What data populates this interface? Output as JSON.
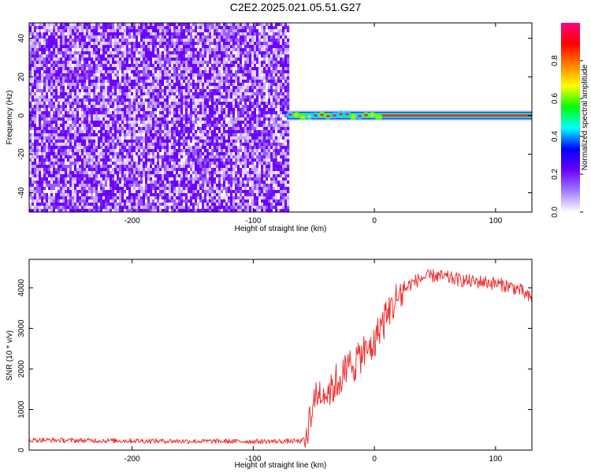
{
  "title": "C2E2.2025.021.05.51.G27",
  "chart_data": [
    {
      "type": "heatmap",
      "xlabel": "Height of straight line (km)",
      "ylabel": "Frequency (Hz)",
      "xlim": [
        -285,
        130
      ],
      "ylim": [
        -50,
        48
      ],
      "x_ticks": [
        -200,
        -100,
        0,
        100
      ],
      "y_ticks": [
        -40,
        -20,
        0,
        20,
        40
      ],
      "regions": [
        {
          "description": "noise",
          "x_range": [
            -285,
            -72
          ],
          "y_range": [
            -50,
            48
          ],
          "normalized_amplitude": 0.1
        },
        {
          "description": "signal band",
          "x_range": [
            -72,
            130
          ],
          "y_center": 0,
          "y_halfwidth": 2,
          "normalized_amplitude": 0.95
        }
      ],
      "colorbar": {
        "label": "Normalized spectral amplitude",
        "range": [
          0,
          1
        ],
        "ticks": [
          0.0,
          0.2,
          0.4,
          0.6,
          0.8
        ],
        "colors": [
          "#ffffff",
          "#a07cff",
          "#6a00ff",
          "#0000ff",
          "#00ffff",
          "#00ff00",
          "#ffff00",
          "#ff8000",
          "#ff0000",
          "#ff0080"
        ]
      }
    },
    {
      "type": "line",
      "xlabel": "Height of straight line (km)",
      "ylabel": "SNR (10 * v/v)",
      "xlim": [
        -285,
        130
      ],
      "ylim": [
        0,
        4700
      ],
      "x_ticks": [
        -200,
        -100,
        0,
        100
      ],
      "y_ticks": [
        0,
        1000,
        2000,
        3000,
        4000
      ],
      "color": "#f03030",
      "series": [
        {
          "x": [
            -285,
            -250,
            -200,
            -150,
            -100,
            -60,
            -57,
            -55,
            -50,
            -45,
            -40,
            -35,
            -30,
            -25,
            -20,
            -15,
            -10,
            -5,
            0,
            5,
            10,
            15,
            20,
            25,
            30,
            40,
            50,
            60,
            70,
            80,
            90,
            100,
            110,
            120,
            130
          ],
          "y": [
            250,
            240,
            230,
            220,
            215,
            220,
            300,
            600,
            1200,
            1450,
            1400,
            1550,
            1700,
            1850,
            2100,
            2200,
            2400,
            2450,
            2700,
            3050,
            3300,
            3550,
            3800,
            3950,
            4100,
            4250,
            4300,
            4250,
            4200,
            4150,
            4150,
            4100,
            4050,
            3950,
            3700
          ]
        }
      ]
    }
  ]
}
